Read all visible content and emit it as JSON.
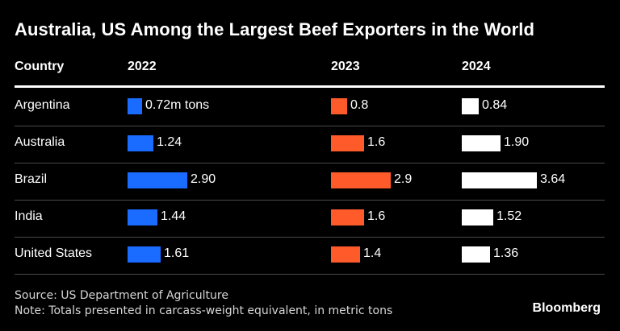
{
  "title": "Australia, US Among the Largest Beef Exporters in the World",
  "headers": {
    "country": "Country",
    "y2022": "2022",
    "y2023": "2023",
    "y2024": "2024"
  },
  "colors": {
    "2022": "#1a6bff",
    "2023": "#ff5a2a",
    "2024": "#ffffff"
  },
  "chart_data": {
    "type": "table",
    "columns": [
      "Country",
      "2022",
      "2023",
      "2024"
    ],
    "rows": [
      {
        "country": "Argentina",
        "v2022": 0.72,
        "v2023": 0.8,
        "v2024": 0.84,
        "l2022": "0.72m tons",
        "l2023": "0.8",
        "l2024": "0.84"
      },
      {
        "country": "Australia",
        "v2022": 1.24,
        "v2023": 1.6,
        "v2024": 1.9,
        "l2022": "1.24",
        "l2023": "1.6",
        "l2024": "1.90"
      },
      {
        "country": "Brazil",
        "v2022": 2.9,
        "v2023": 2.9,
        "v2024": 3.64,
        "l2022": "2.90",
        "l2023": "2.9",
        "l2024": "3.64"
      },
      {
        "country": "India",
        "v2022": 1.44,
        "v2023": 1.6,
        "v2024": 1.52,
        "l2022": "1.44",
        "l2023": "1.6",
        "l2024": "1.52"
      },
      {
        "country": "United States",
        "v2022": 1.61,
        "v2023": 1.4,
        "v2024": 1.36,
        "l2022": "1.61",
        "l2023": "1.4",
        "l2024": "1.36"
      }
    ]
  },
  "source": "Source: US Department of Agriculture",
  "note": "Note: Totals presented in carcass-weight equivalent, in metric tons",
  "brand": "Bloomberg"
}
